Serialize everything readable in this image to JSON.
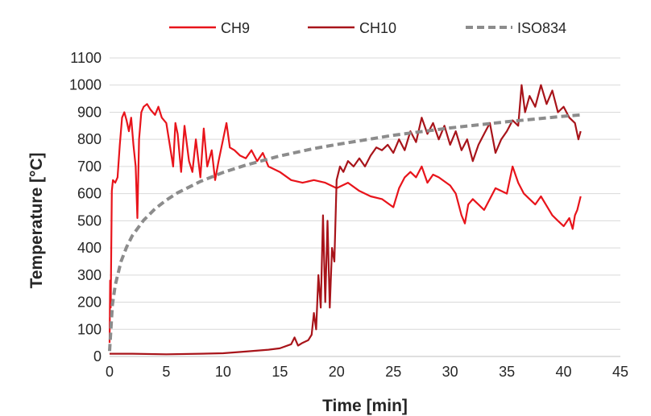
{
  "chart_data": {
    "type": "line",
    "title": "",
    "xlabel": "Time [min]",
    "ylabel": "Temperature [°C]",
    "xlim": [
      0,
      45
    ],
    "ylim": [
      0,
      1100
    ],
    "x_ticks": [
      0,
      5,
      10,
      15,
      20,
      25,
      30,
      35,
      40,
      45
    ],
    "y_ticks": [
      0,
      100,
      200,
      300,
      400,
      500,
      600,
      700,
      800,
      900,
      1000,
      1100
    ],
    "grid": "horizontal",
    "legend_position": "top",
    "series": [
      {
        "name": "CH9",
        "color": "#e8141b",
        "style": "solid",
        "x": [
          0,
          0.05,
          0.1,
          0.15,
          0.2,
          0.3,
          0.5,
          0.7,
          0.9,
          1.1,
          1.3,
          1.5,
          1.7,
          1.9,
          2.1,
          2.3,
          2.45,
          2.6,
          2.8,
          3.0,
          3.3,
          3.6,
          4.0,
          4.3,
          4.6,
          5.0,
          5.3,
          5.6,
          5.8,
          6.0,
          6.3,
          6.6,
          7.0,
          7.3,
          7.6,
          8.0,
          8.3,
          8.6,
          9.0,
          9.3,
          9.6,
          10.0,
          10.3,
          10.6,
          11.0,
          11.5,
          12.0,
          12.5,
          13.0,
          13.5,
          14.0,
          15.0,
          16.0,
          17.0,
          18.0,
          19.0,
          20.0,
          21.0,
          22.0,
          23.0,
          24.0,
          25.0,
          25.5,
          26.0,
          26.5,
          27.0,
          27.5,
          28.0,
          28.5,
          29.0,
          30.0,
          30.5,
          31.0,
          31.3,
          31.6,
          32.0,
          33.0,
          34.0,
          35.0,
          35.5,
          36.0,
          36.5,
          37.0,
          37.5,
          38.0,
          39.0,
          39.5,
          40.0,
          40.5,
          40.8,
          41.0,
          41.2,
          41.5
        ],
        "values": [
          50,
          280,
          180,
          400,
          610,
          650,
          640,
          660,
          780,
          880,
          900,
          870,
          830,
          880,
          780,
          700,
          510,
          800,
          900,
          920,
          930,
          910,
          890,
          920,
          880,
          860,
          780,
          700,
          860,
          820,
          680,
          850,
          720,
          680,
          800,
          660,
          840,
          700,
          760,
          650,
          720,
          800,
          860,
          770,
          760,
          740,
          730,
          760,
          720,
          750,
          700,
          680,
          650,
          640,
          650,
          640,
          620,
          640,
          610,
          590,
          580,
          550,
          620,
          660,
          680,
          660,
          700,
          640,
          670,
          660,
          630,
          600,
          520,
          490,
          560,
          580,
          540,
          620,
          600,
          700,
          640,
          600,
          580,
          560,
          590,
          520,
          500,
          480,
          510,
          470,
          520,
          540,
          590
        ]
      },
      {
        "name": "CH10",
        "color": "#a8141a",
        "style": "solid",
        "x": [
          0,
          2,
          5,
          8,
          10,
          12,
          14,
          15,
          16,
          16.3,
          16.6,
          17,
          17.5,
          17.8,
          18.0,
          18.2,
          18.4,
          18.6,
          18.8,
          19.0,
          19.2,
          19.4,
          19.6,
          19.8,
          20.0,
          20.3,
          20.6,
          21.0,
          21.5,
          22.0,
          22.5,
          23.0,
          23.5,
          24.0,
          24.5,
          25.0,
          25.5,
          26.0,
          26.5,
          27.0,
          27.5,
          28.0,
          28.5,
          29.0,
          29.5,
          30.0,
          30.5,
          31.0,
          31.5,
          32.0,
          32.5,
          33.0,
          33.5,
          34.0,
          34.5,
          35.0,
          35.5,
          36.0,
          36.3,
          36.6,
          37.0,
          37.5,
          38.0,
          38.5,
          39.0,
          39.5,
          40.0,
          40.5,
          41.0,
          41.3,
          41.5
        ],
        "values": [
          10,
          10,
          8,
          10,
          12,
          18,
          25,
          30,
          45,
          70,
          40,
          50,
          60,
          80,
          160,
          100,
          300,
          180,
          520,
          200,
          500,
          180,
          400,
          350,
          650,
          700,
          680,
          720,
          700,
          730,
          700,
          740,
          770,
          760,
          780,
          750,
          800,
          760,
          830,
          790,
          880,
          820,
          860,
          800,
          850,
          780,
          830,
          760,
          800,
          720,
          780,
          820,
          860,
          750,
          800,
          830,
          870,
          850,
          1000,
          900,
          960,
          920,
          1000,
          930,
          980,
          900,
          920,
          880,
          860,
          800,
          830
        ]
      },
      {
        "name": "ISO834",
        "color": "#8c8c8c",
        "style": "dashed",
        "x": [
          0,
          0.25,
          0.5,
          1,
          1.5,
          2,
          3,
          4,
          5,
          6,
          8,
          10,
          12,
          15,
          18,
          20,
          25,
          30,
          35,
          40,
          41.5
        ],
        "values": [
          20,
          190,
          262,
          349,
          403,
          445,
          502,
          544,
          576,
          603,
          645,
          678,
          705,
          739,
          766,
          781,
          815,
          842,
          865,
          885,
          890
        ]
      }
    ]
  }
}
